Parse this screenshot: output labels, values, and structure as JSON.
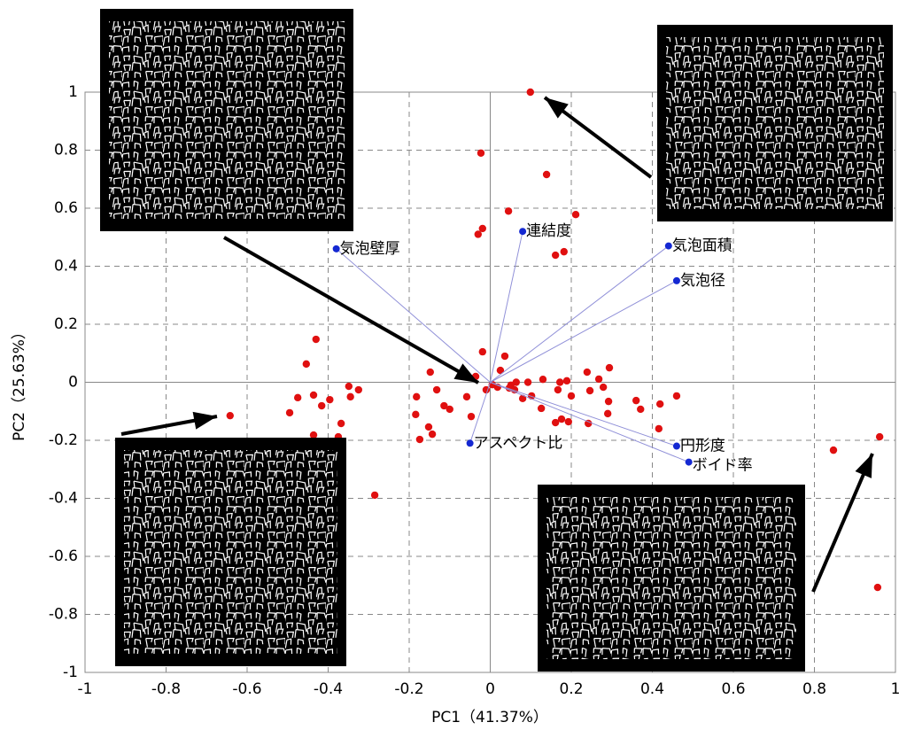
{
  "chart_data": {
    "type": "scatter",
    "xlabel": "PC1（41.37%）",
    "ylabel": "PC2（25.63%）",
    "xlim": [
      -1,
      1
    ],
    "ylim": [
      -1,
      1
    ],
    "xticks": [
      -1,
      -0.8,
      -0.6,
      -0.4,
      -0.2,
      0,
      0.2,
      0.4,
      0.6,
      0.8,
      1
    ],
    "yticks": [
      -1,
      -0.8,
      -0.6,
      -0.4,
      -0.2,
      0,
      0.2,
      0.4,
      0.6,
      0.8,
      1
    ],
    "grid": true,
    "scores": {
      "color": "#e01010",
      "x": [
        0.099,
        -0.023,
        0.139,
        0.045,
        0.211,
        -0.019,
        -0.03,
        0.182,
        0.161,
        -0.43,
        -0.454,
        -0.019,
        0.036,
        -0.148,
        0.025,
        0.294,
        0.239,
        0.13,
        0.093,
        0.172,
        0.189,
        0.268,
        -0.036,
        -0.349,
        -0.325,
        -0.345,
        -0.436,
        -0.475,
        -0.416,
        -0.396,
        -0.642,
        -0.495,
        -0.182,
        -0.132,
        -0.114,
        -0.058,
        -0.01,
        0.005,
        0.018,
        0.051,
        0.064,
        0.102,
        0.047,
        0.06,
        0.08,
        0.167,
        0.2,
        0.246,
        0.279,
        0.36,
        0.371,
        0.419,
        0.46,
        0.292,
        0.29,
        0.126,
        0.176,
        0.193,
        0.161,
        0.242,
        -0.1,
        -0.047,
        -0.184,
        -0.152,
        -0.143,
        -0.174,
        -0.368,
        -0.375,
        -0.436,
        -0.285,
        0.847,
        0.961,
        0.956,
        0.416
      ],
      "y": [
        1.0,
        0.79,
        0.716,
        0.59,
        0.578,
        0.53,
        0.51,
        0.45,
        0.438,
        0.148,
        0.063,
        0.105,
        0.09,
        0.035,
        0.041,
        0.05,
        0.035,
        0.01,
        0,
        0,
        0.005,
        0.011,
        0.02,
        -0.014,
        -0.026,
        -0.05,
        -0.044,
        -0.053,
        -0.081,
        -0.06,
        -0.115,
        -0.105,
        -0.05,
        -0.026,
        -0.081,
        -0.05,
        -0.026,
        -0.008,
        -0.017,
        -0.01,
        0,
        -0.047,
        -0.02,
        -0.026,
        -0.056,
        -0.026,
        -0.047,
        -0.029,
        -0.017,
        -0.063,
        -0.093,
        -0.075,
        -0.047,
        -0.066,
        -0.108,
        -0.09,
        -0.127,
        -0.136,
        -0.139,
        -0.142,
        -0.093,
        -0.118,
        -0.111,
        -0.154,
        -0.179,
        -0.197,
        -0.142,
        -0.188,
        -0.182,
        -0.389,
        -0.234,
        -0.188,
        -0.707,
        -0.16
      ]
    },
    "loadings": {
      "color": "#1428d2",
      "line_color": "#9090d8",
      "labels": [
        "気泡壁厚",
        "連結度",
        "気泡面積",
        "気泡径",
        "アスペクト比",
        "円形度",
        "ボイド率"
      ],
      "x": [
        -0.38,
        0.08,
        0.44,
        0.46,
        -0.05,
        0.46,
        0.49
      ],
      "y": [
        0.46,
        0.52,
        0.47,
        0.35,
        -0.21,
        -0.22,
        -0.275
      ]
    }
  }
}
